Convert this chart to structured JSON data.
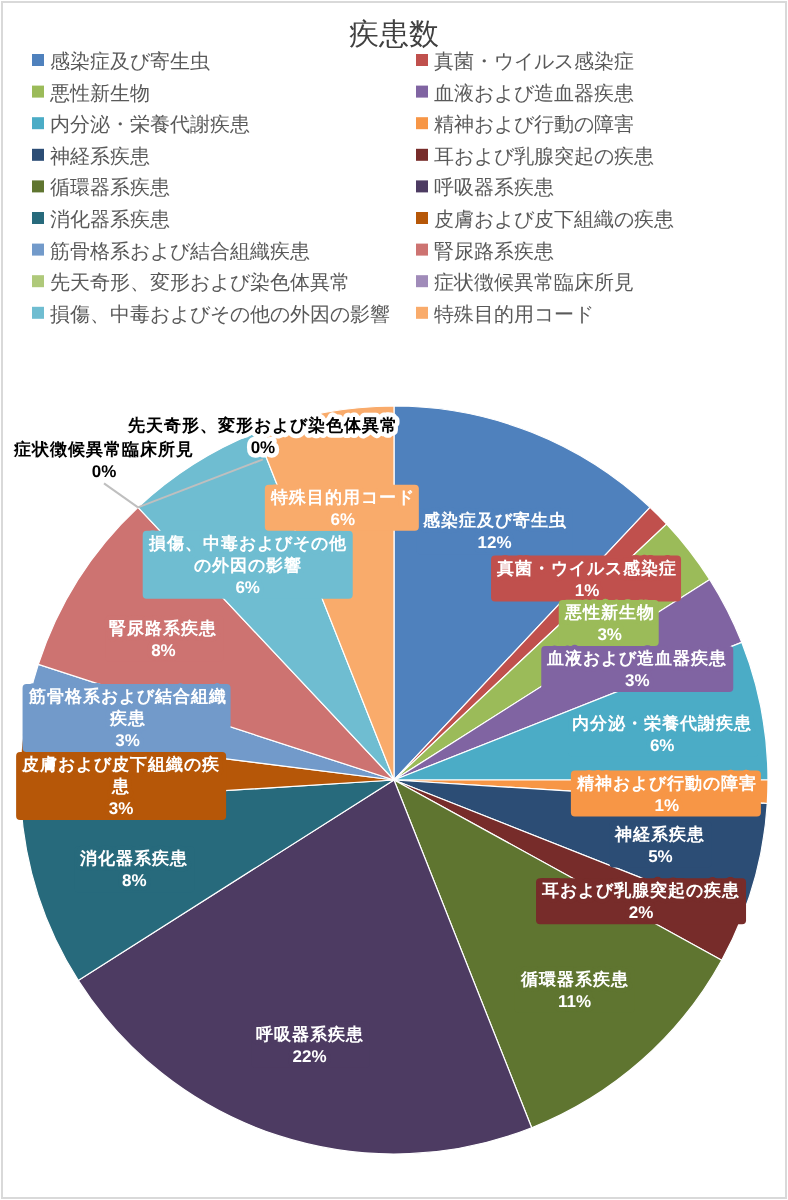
{
  "chart_data": {
    "type": "pie",
    "title": "疾患数",
    "categories": [
      "感染症及び寄生虫",
      "真菌・ウイルス感染症",
      "悪性新生物",
      "血液および造血器疾患",
      "内分泌・栄養代謝疾患",
      "精神および行動の障害",
      "神経系疾患",
      "耳および乳腺突起の疾患",
      "循環器系疾患",
      "呼吸器系疾患",
      "消化器系疾患",
      "皮膚および皮下組織の疾患",
      "筋骨格系および結合組織疾患",
      "腎尿路系疾患",
      "先天奇形、変形および染色体異常",
      "症状徴候異常臨床所見",
      "損傷、中毒およびその他の外因の影響",
      "特殊目的用コード"
    ],
    "values": [
      12,
      1,
      3,
      3,
      6,
      1,
      5,
      2,
      11,
      22,
      8,
      3,
      3,
      8,
      0,
      0,
      6,
      6
    ],
    "colors": [
      "#4f81bd",
      "#c0504d",
      "#9bbb59",
      "#8064a2",
      "#4bacc6",
      "#f79646",
      "#2c4d75",
      "#772c2a",
      "#5f7530",
      "#4d3b62",
      "#276a7c",
      "#b65708",
      "#729aca",
      "#cd7371",
      "#afc97a",
      "#a08bb9",
      "#6fbdd1",
      "#f9ab6b"
    ],
    "value_labels": [
      "12%",
      "1%",
      "3%",
      "3%",
      "6%",
      "1%",
      "5%",
      "2%",
      "11%",
      "22%",
      "8%",
      "3%",
      "3%",
      "8%",
      "0%",
      "0%",
      "6%",
      "6%"
    ],
    "legend": "top"
  }
}
